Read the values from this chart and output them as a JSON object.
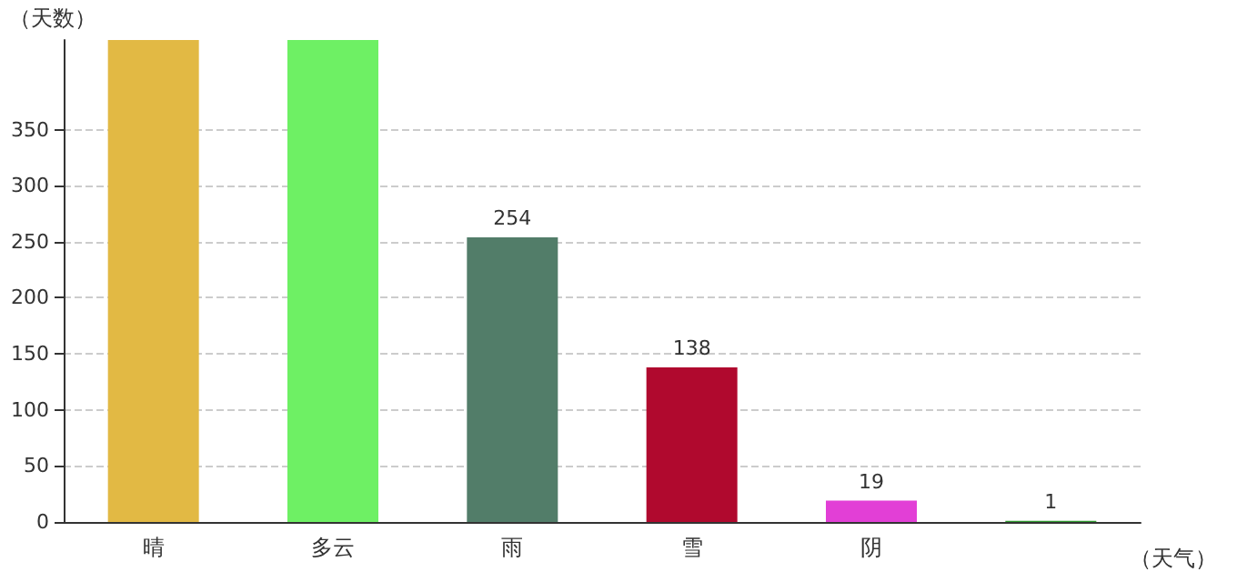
{
  "chart_data": {
    "type": "bar",
    "xlabel": "（天气）",
    "ylabel": "（天数）",
    "categories": [
      "晴",
      "多云",
      "雨",
      "雪",
      "阴",
      null
    ],
    "values": [
      430,
      430,
      254,
      138,
      19,
      1
    ],
    "colors": [
      "#e2b944",
      "#6ef064",
      "#527d69",
      "#b0092e",
      "#e23fd6",
      "#2e9a2e"
    ],
    "value_labels": [
      null,
      null,
      "254",
      "138",
      "19",
      "1"
    ],
    "ylim": [
      0,
      430
    ],
    "yticks": [
      0,
      50,
      100,
      150,
      200,
      250,
      300,
      350
    ],
    "grid": "y"
  }
}
